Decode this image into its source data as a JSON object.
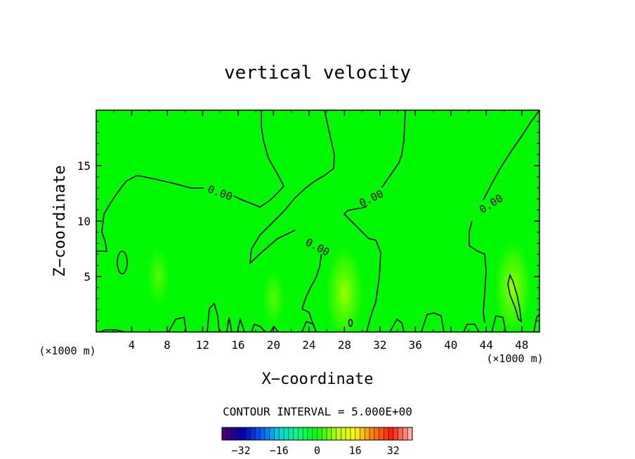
{
  "chart_data": {
    "type": "heatmap",
    "title": "vertical velocity",
    "xlabel": "X−coordinate",
    "ylabel": "Z−coordinate",
    "x_unit": "(×1000 m)",
    "y_unit": "(×1000 m)",
    "xlim": [
      0,
      50
    ],
    "ylim": [
      0,
      20
    ],
    "x_ticks": [
      4,
      8,
      12,
      16,
      20,
      24,
      28,
      32,
      36,
      40,
      44,
      48
    ],
    "y_ticks": [
      5,
      10,
      15
    ],
    "grid": false,
    "contour_label": "0.00",
    "contour_level": 0.0,
    "contour_labels_at": [
      [
        14,
        12.6
      ],
      [
        31,
        12.1
      ],
      [
        25,
        7.7
      ],
      [
        44.5,
        11.6
      ]
    ],
    "contour_interval_text": "CONTOUR INTERVAL = 5.000E+00",
    "colorbar": {
      "range": [
        -40,
        40
      ],
      "ticks": [
        -32,
        -16,
        0,
        16,
        32
      ],
      "colors": [
        "#4a0070",
        "#0000b0",
        "#0060ff",
        "#00d8e0",
        "#00ff80",
        "#00ff00",
        "#b0ff00",
        "#ffff00",
        "#ff8000",
        "#ff2000",
        "#ffb0a0"
      ]
    },
    "field_description": "vertical velocity field, mostly near zero (green), weak positive updraft cores near x=28 and x=47 in lower levels",
    "highlights": [
      {
        "x": 28,
        "z": 3.5,
        "value": 3
      },
      {
        "x": 47,
        "z": 4,
        "value": 3
      },
      {
        "x": 7,
        "z": 5,
        "value": 1
      },
      {
        "x": 20,
        "z": 3,
        "value": 1
      }
    ]
  }
}
